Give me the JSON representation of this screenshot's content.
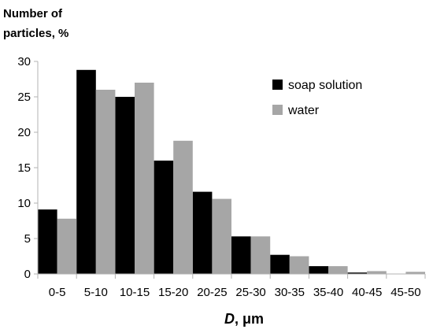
{
  "chart_data": {
    "type": "bar",
    "ylabel_line1": "Number of",
    "ylabel_line2": "particles, %",
    "xlabel_italic": "D",
    "xlabel_rest": ", μm",
    "categories": [
      "0-5",
      "5-10",
      "10-15",
      "15-20",
      "20-25",
      "25-30",
      "30-35",
      "35-40",
      "40-45",
      "45-50"
    ],
    "series": [
      {
        "name": "soap solution",
        "color": "#000000",
        "values": [
          9.1,
          28.8,
          25.0,
          16.0,
          11.6,
          5.3,
          2.7,
          1.1,
          0.2,
          0.0
        ]
      },
      {
        "name": "water",
        "color": "#a6a6a6",
        "values": [
          7.8,
          26.0,
          27.0,
          18.8,
          10.6,
          5.3,
          2.5,
          1.1,
          0.4,
          0.3
        ]
      }
    ],
    "ylim": [
      0,
      30
    ],
    "yticks": [
      0,
      5,
      10,
      15,
      20,
      25,
      30
    ],
    "grid": false,
    "legend_position": "top-right"
  }
}
